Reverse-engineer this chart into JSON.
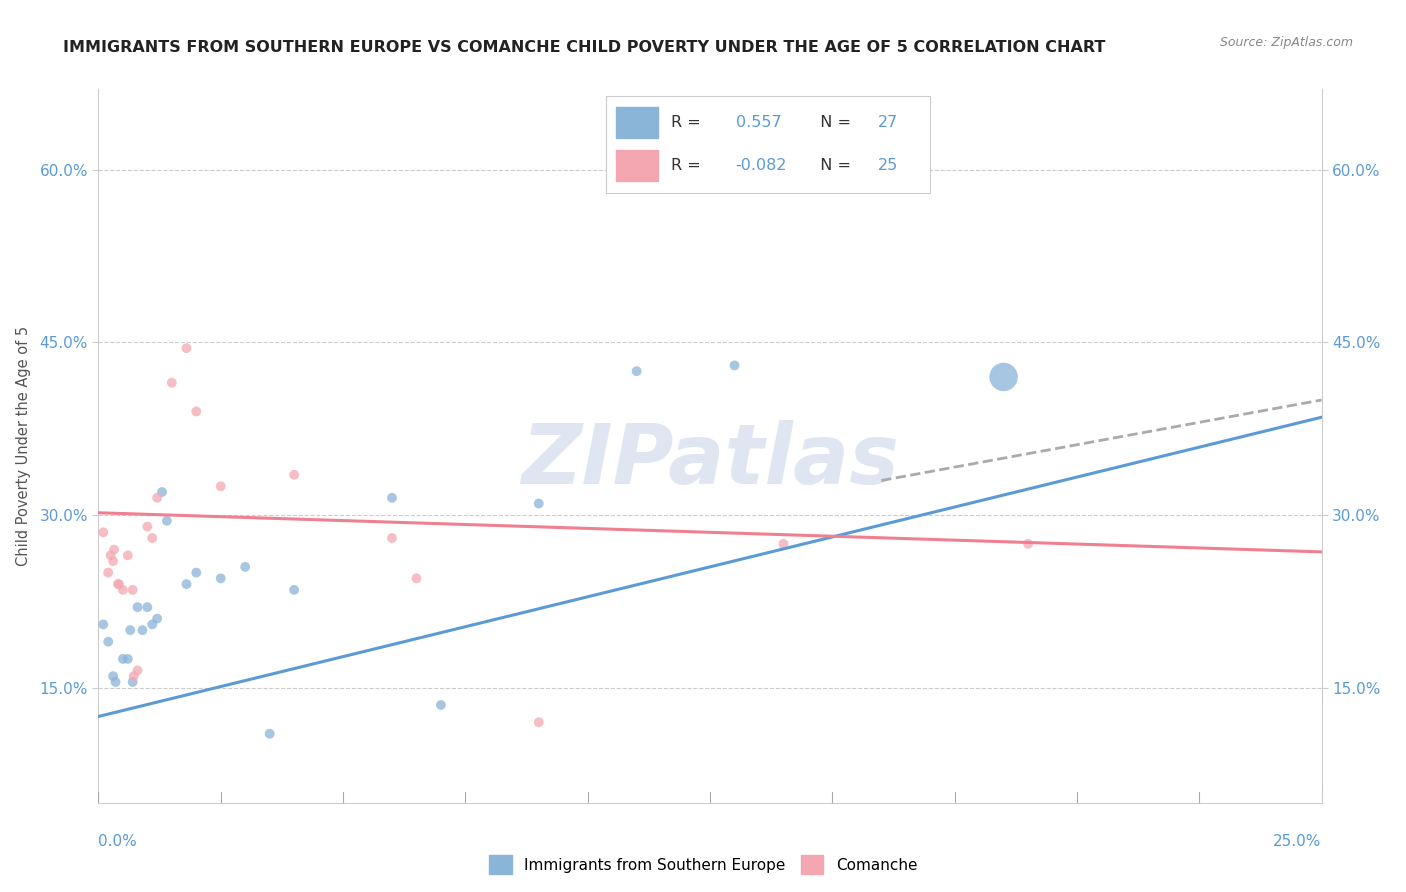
{
  "title": "IMMIGRANTS FROM SOUTHERN EUROPE VS COMANCHE CHILD POVERTY UNDER THE AGE OF 5 CORRELATION CHART",
  "source": "Source: ZipAtlas.com",
  "ylabel": "Child Poverty Under the Age of 5",
  "x_range": [
    0.0,
    0.25
  ],
  "y_range": [
    0.05,
    0.67
  ],
  "y_ticks": [
    0.15,
    0.3,
    0.45,
    0.6
  ],
  "y_tick_labels": [
    "15.0%",
    "30.0%",
    "45.0%",
    "60.0%"
  ],
  "blue_R": "0.557",
  "blue_N": "27",
  "pink_R": "-0.082",
  "pink_N": "25",
  "blue_color": "#8ab4d8",
  "blue_line_color": "#5b9bd5",
  "pink_color": "#f4a7b0",
  "pink_line_color": "#f08090",
  "blue_scatter": [
    [
      0.001,
      0.205
    ],
    [
      0.002,
      0.19
    ],
    [
      0.003,
      0.16
    ],
    [
      0.0035,
      0.155
    ],
    [
      0.005,
      0.175
    ],
    [
      0.006,
      0.175
    ],
    [
      0.0065,
      0.2
    ],
    [
      0.007,
      0.155
    ],
    [
      0.008,
      0.22
    ],
    [
      0.009,
      0.2
    ],
    [
      0.01,
      0.22
    ],
    [
      0.011,
      0.205
    ],
    [
      0.012,
      0.21
    ],
    [
      0.013,
      0.32
    ],
    [
      0.014,
      0.295
    ],
    [
      0.018,
      0.24
    ],
    [
      0.02,
      0.25
    ],
    [
      0.025,
      0.245
    ],
    [
      0.03,
      0.255
    ],
    [
      0.035,
      0.11
    ],
    [
      0.04,
      0.235
    ],
    [
      0.06,
      0.315
    ],
    [
      0.07,
      0.135
    ],
    [
      0.09,
      0.31
    ],
    [
      0.11,
      0.425
    ],
    [
      0.13,
      0.43
    ],
    [
      0.185,
      0.42
    ]
  ],
  "blue_sizes": [
    50,
    50,
    50,
    50,
    50,
    50,
    50,
    50,
    50,
    50,
    50,
    50,
    50,
    50,
    50,
    50,
    50,
    50,
    50,
    50,
    50,
    50,
    50,
    50,
    50,
    50,
    420
  ],
  "pink_scatter": [
    [
      0.001,
      0.285
    ],
    [
      0.002,
      0.25
    ],
    [
      0.0025,
      0.265
    ],
    [
      0.003,
      0.26
    ],
    [
      0.0032,
      0.27
    ],
    [
      0.004,
      0.24
    ],
    [
      0.0042,
      0.24
    ],
    [
      0.005,
      0.235
    ],
    [
      0.006,
      0.265
    ],
    [
      0.007,
      0.235
    ],
    [
      0.0072,
      0.16
    ],
    [
      0.008,
      0.165
    ],
    [
      0.01,
      0.29
    ],
    [
      0.011,
      0.28
    ],
    [
      0.012,
      0.315
    ],
    [
      0.015,
      0.415
    ],
    [
      0.018,
      0.445
    ],
    [
      0.02,
      0.39
    ],
    [
      0.025,
      0.325
    ],
    [
      0.04,
      0.335
    ],
    [
      0.06,
      0.28
    ],
    [
      0.065,
      0.245
    ],
    [
      0.09,
      0.12
    ],
    [
      0.14,
      0.275
    ],
    [
      0.19,
      0.275
    ]
  ],
  "pink_sizes": [
    50,
    50,
    50,
    50,
    50,
    50,
    50,
    50,
    50,
    50,
    50,
    50,
    50,
    50,
    50,
    50,
    50,
    50,
    50,
    50,
    50,
    50,
    50,
    50,
    50
  ],
  "watermark": "ZIPatlas",
  "blue_line_x": [
    0.0,
    0.25
  ],
  "blue_line_y": [
    0.125,
    0.385
  ],
  "pink_line_x": [
    0.0,
    0.25
  ],
  "pink_line_y": [
    0.302,
    0.268
  ],
  "dashed_line_x": [
    0.16,
    0.25
  ],
  "dashed_line_y": [
    0.33,
    0.4
  ],
  "bg_color": "#ffffff",
  "grid_color": "#cccccc",
  "tick_color": "#5b9bd5",
  "title_color": "#222222"
}
